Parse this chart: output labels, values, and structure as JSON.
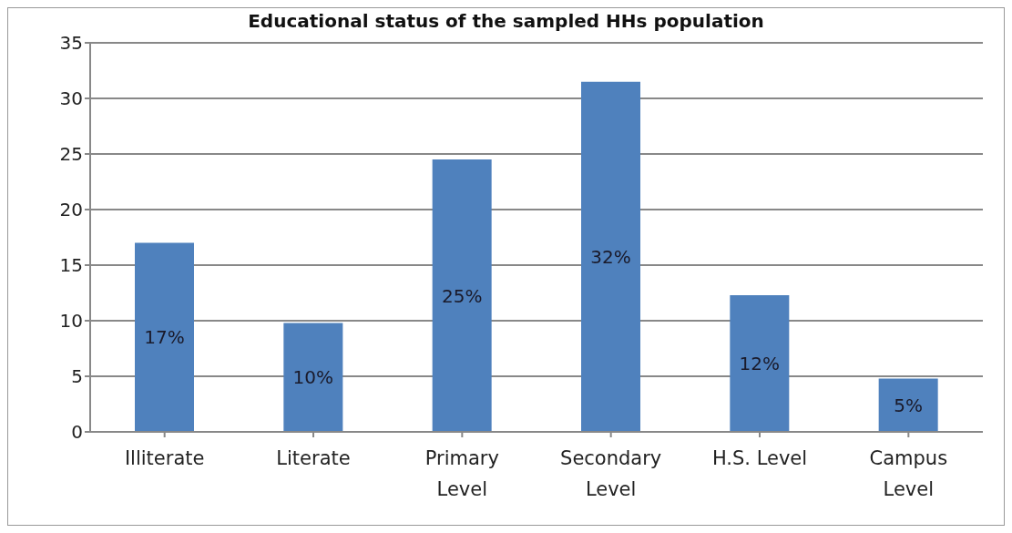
{
  "chart_data": {
    "type": "bar",
    "title": "Educational status of the sampled HHs population",
    "categories": [
      "Illiterate",
      "Literate",
      "Primary Level",
      "Secondary Level",
      "H.S. Level",
      "Campus Level"
    ],
    "values": [
      17,
      9.8,
      24.5,
      31.5,
      12.3,
      4.8
    ],
    "value_labels": [
      "17%",
      "10%",
      "25%",
      "32%",
      "12%",
      "5%"
    ],
    "color": "#4f81bd",
    "ylim": [
      0,
      35
    ],
    "yticks": [
      0,
      5,
      10,
      15,
      20,
      25,
      30,
      35
    ],
    "grid": "y"
  }
}
